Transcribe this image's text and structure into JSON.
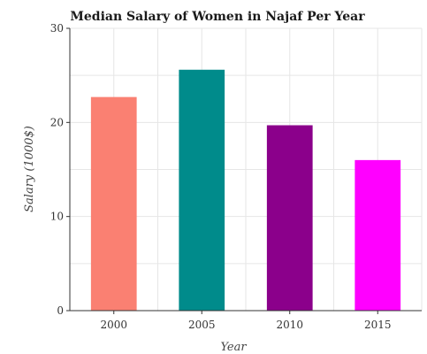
{
  "chart_data": {
    "type": "bar",
    "title": "Median Salary of Women in Najaf Per Year",
    "xlabel": "Year",
    "ylabel": "Salary (1000$)",
    "categories": [
      "2000",
      "2005",
      "2010",
      "2015"
    ],
    "values": [
      22.7,
      25.6,
      19.7,
      16.0
    ],
    "colors": [
      "#fa8072",
      "#008b8b",
      "#8b008b",
      "#ff00ff"
    ],
    "ylim": [
      0,
      30
    ],
    "yticks": [
      0,
      10,
      20,
      30
    ],
    "grid": true,
    "legend": "none"
  }
}
